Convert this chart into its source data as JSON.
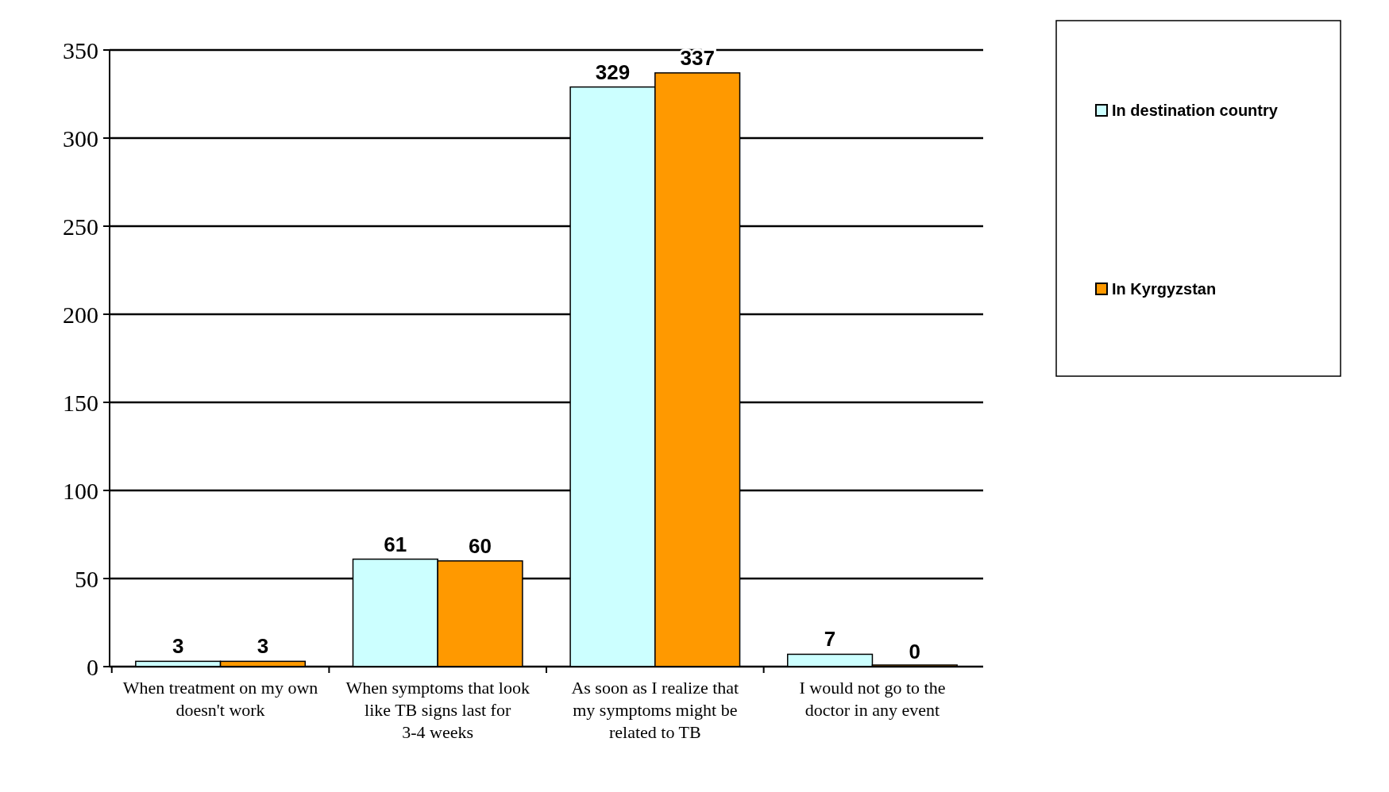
{
  "chart_data": {
    "type": "bar",
    "categories": [
      "When treatment on my own doesn't work",
      "When symptoms that look like TB signs last for 3-4 weeks",
      "As soon as I realize that my symptoms might be related to TB",
      "I would not go to the doctor in any event"
    ],
    "series": [
      {
        "name": "In destination country",
        "color": "#ccffff",
        "values": [
          3,
          61,
          329,
          7
        ]
      },
      {
        "name": "In Kyrgyzstan",
        "color": "#ff9900",
        "values": [
          3,
          60,
          337,
          0
        ]
      }
    ],
    "ylim": [
      0,
      350
    ],
    "yticks": [
      0,
      50,
      100,
      150,
      200,
      250,
      300,
      350
    ],
    "grid": "y",
    "legend": "right",
    "data_labels": true
  }
}
